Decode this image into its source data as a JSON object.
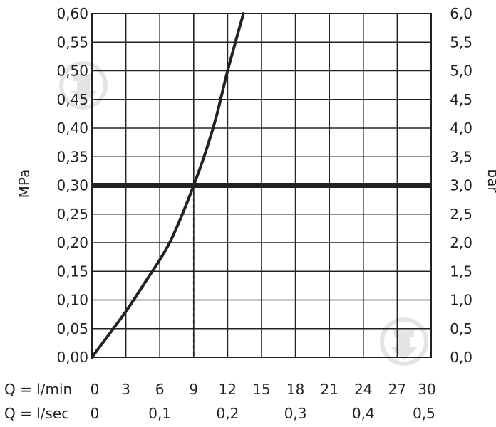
{
  "chart_data": {
    "type": "line",
    "title": "",
    "ylabel_left": "MPa",
    "ylabel_right": "bar",
    "xlim": [
      0,
      30
    ],
    "ylim": [
      0,
      0.6
    ],
    "grid": true,
    "x_row1_label": "Q = l/min",
    "x_row2_label": "Q = l/sec",
    "x_ticks_lmin": [
      "0",
      "3",
      "6",
      "9",
      "12",
      "15",
      "18",
      "21",
      "24",
      "27",
      "30"
    ],
    "x_ticks_lsec": [
      {
        "label": "0",
        "x": 0
      },
      {
        "label": "0,1",
        "x": 6
      },
      {
        "label": "0,2",
        "x": 12
      },
      {
        "label": "0,3",
        "x": 18
      },
      {
        "label": "0,4",
        "x": 24
      },
      {
        "label": "0,5",
        "x": 30
      }
    ],
    "y_ticks_left": [
      "0,00",
      "0,05",
      "0,10",
      "0,15",
      "0,20",
      "0,25",
      "0,30",
      "0,35",
      "0,40",
      "0,45",
      "0,50",
      "0,55",
      "0,60"
    ],
    "y_ticks_right": [
      "0,0",
      "0,5",
      "1,0",
      "1,5",
      "2,0",
      "2,5",
      "3,0",
      "3,5",
      "4,0",
      "4,5",
      "5,0",
      "5,5",
      "6,0"
    ],
    "series": [
      {
        "values": [
          {
            "x": 0,
            "y": 0
          },
          {
            "x": 3,
            "y": 0.08
          },
          {
            "x": 5,
            "y": 0.14
          },
          {
            "x": 6,
            "y": 0.17
          },
          {
            "x": 7,
            "y": 0.205
          },
          {
            "x": 8,
            "y": 0.25
          },
          {
            "x": 9,
            "y": 0.3
          },
          {
            "x": 10,
            "y": 0.355
          },
          {
            "x": 11,
            "y": 0.42
          },
          {
            "x": 12,
            "y": 0.5
          },
          {
            "x": 13.4,
            "y": 0.6
          }
        ]
      }
    ],
    "reference_line": {
      "y": 0.3
    },
    "reference_drop": {
      "x": 9,
      "y": 0.3
    }
  },
  "colors": {
    "line": "#222222",
    "grid": "#222222",
    "watermark": "#e6e6e6"
  },
  "watermarks": [
    "shower-drop-icon",
    "shower-drop-icon"
  ]
}
